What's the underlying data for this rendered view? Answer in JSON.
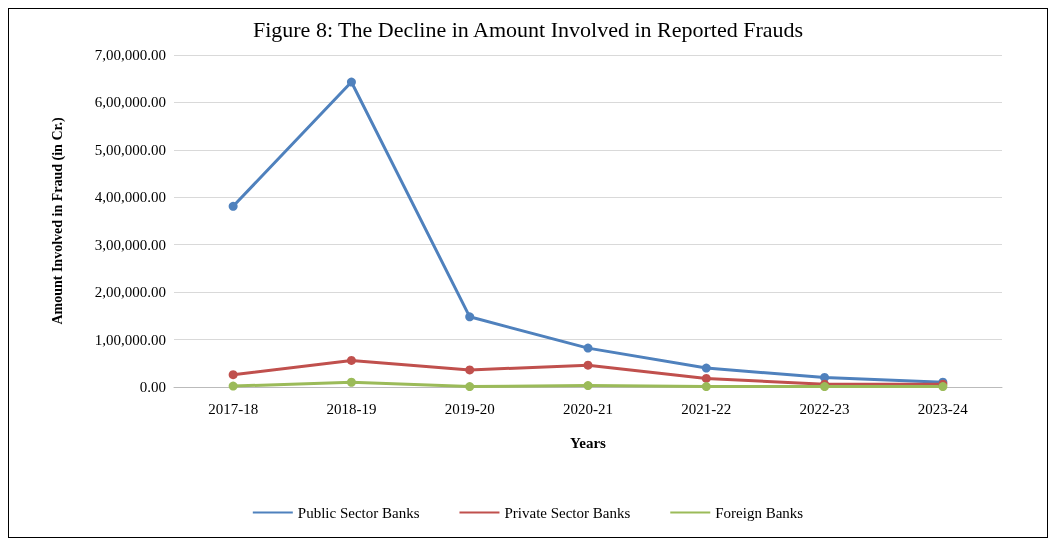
{
  "chart_data": {
    "type": "line",
    "title": "Figure 8: The Decline in Amount Involved in Reported Frauds",
    "xlabel": "Years",
    "ylabel": "Amount Involved in Fraud (in Cr.)",
    "categories": [
      "2017-18",
      "2018-19",
      "2019-20",
      "2020-21",
      "2021-22",
      "2022-23",
      "2023-24"
    ],
    "series": [
      {
        "name": "Public Sector Banks",
        "color": "#4f81bd",
        "values": [
          381000,
          643000,
          148000,
          82000,
          40000,
          20000,
          10000
        ]
      },
      {
        "name": "Private Sector Banks",
        "color": "#c0504d",
        "values": [
          26000,
          56000,
          36000,
          46000,
          18000,
          6000,
          6000
        ]
      },
      {
        "name": "Foreign Banks",
        "color": "#9bbb59",
        "values": [
          2000,
          10000,
          1000,
          3000,
          1000,
          1000,
          1000
        ]
      }
    ],
    "ylim": [
      0,
      700000
    ],
    "yticks": [
      {
        "value": 0,
        "label": "0.00"
      },
      {
        "value": 100000,
        "label": "1,00,000.00"
      },
      {
        "value": 200000,
        "label": "2,00,000.00"
      },
      {
        "value": 300000,
        "label": "3,00,000.00"
      },
      {
        "value": 400000,
        "label": "4,00,000.00"
      },
      {
        "value": 500000,
        "label": "5,00,000.00"
      },
      {
        "value": 600000,
        "label": "6,00,000.00"
      },
      {
        "value": 700000,
        "label": "7,00,000.00"
      }
    ],
    "grid": "y",
    "legend": "bottom",
    "marker": "circle",
    "line_style": "solid"
  }
}
